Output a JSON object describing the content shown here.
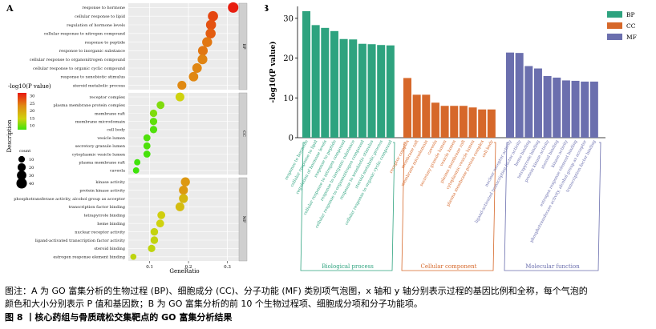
{
  "panel_a": {
    "label": "A",
    "xlabel": "GeneRatio",
    "xticks": [
      0.1,
      0.2,
      0.3
    ],
    "legend_color_title": "-log10(P value)",
    "legend_color_ticks": [
      30,
      25,
      20,
      15,
      10
    ],
    "legend_color_axis_label": "Description",
    "legend_size_title": "count",
    "legend_size_values": [
      10,
      20,
      30,
      40
    ],
    "facets": [
      {
        "strip": "BP",
        "terms": [
          {
            "label": "response to hormone",
            "ratio": 0.315,
            "logp": 31.5,
            "count": 40
          },
          {
            "label": "cellular response to lipid",
            "ratio": 0.263,
            "logp": 28.3,
            "count": 37
          },
          {
            "label": "regulation of hormone levels",
            "ratio": 0.258,
            "logp": 27.4,
            "count": 36
          },
          {
            "label": "cellular response to nitrogen compound",
            "ratio": 0.257,
            "logp": 26.5,
            "count": 36
          },
          {
            "label": "response to peptide",
            "ratio": 0.248,
            "logp": 24.5,
            "count": 35
          },
          {
            "label": "response to inorganic substance",
            "ratio": 0.237,
            "logp": 24.5,
            "count": 33
          },
          {
            "label": "cellular response to organonitrogen compound",
            "ratio": 0.236,
            "logp": 23.5,
            "count": 33
          },
          {
            "label": "cellular response to organic cyclic compound",
            "ratio": 0.222,
            "logp": 23.3,
            "count": 31
          },
          {
            "label": "response to xenobiotic stimulus",
            "ratio": 0.213,
            "logp": 23.2,
            "count": 30
          },
          {
            "label": "steroid metabolic process",
            "ratio": 0.183,
            "logp": 23.1,
            "count": 26
          }
        ]
      },
      {
        "strip": "CC",
        "terms": [
          {
            "label": "receptor complex",
            "ratio": 0.178,
            "logp": 15.0,
            "count": 25
          },
          {
            "label": "plasma membrane protein complex",
            "ratio": 0.128,
            "logp": 10.6,
            "count": 18
          },
          {
            "label": "membrane raft",
            "ratio": 0.11,
            "logp": 10.6,
            "count": 15
          },
          {
            "label": "membrane microdomain",
            "ratio": 0.11,
            "logp": 8.8,
            "count": 15
          },
          {
            "label": "cell body",
            "ratio": 0.11,
            "logp": 8.0,
            "count": 15
          },
          {
            "label": "vesicle lumen",
            "ratio": 0.093,
            "logp": 8.0,
            "count": 13
          },
          {
            "label": "secretory granule lumen",
            "ratio": 0.093,
            "logp": 7.9,
            "count": 13
          },
          {
            "label": "cytoplasmic vesicle lumen",
            "ratio": 0.093,
            "logp": 7.5,
            "count": 13
          },
          {
            "label": "plasma membrane raft",
            "ratio": 0.068,
            "logp": 7.1,
            "count": 9
          },
          {
            "label": "caveola",
            "ratio": 0.065,
            "logp": 7.0,
            "count": 9
          }
        ]
      },
      {
        "strip": "MF",
        "terms": [
          {
            "label": "kinase activity",
            "ratio": 0.192,
            "logp": 21.4,
            "count": 27
          },
          {
            "label": "protein kinase activity",
            "ratio": 0.187,
            "logp": 21.3,
            "count": 26
          },
          {
            "label": "phosphotransferase activity, alcohol group as acceptor",
            "ratio": 0.187,
            "logp": 18.0,
            "count": 26
          },
          {
            "label": "transcription factor binding",
            "ratio": 0.178,
            "logp": 17.4,
            "count": 25
          },
          {
            "label": "tetrapyrrole binding",
            "ratio": 0.13,
            "logp": 15.5,
            "count": 18
          },
          {
            "label": "heme binding",
            "ratio": 0.127,
            "logp": 15.0,
            "count": 18
          },
          {
            "label": "nuclear receptor activity",
            "ratio": 0.112,
            "logp": 14.4,
            "count": 16
          },
          {
            "label": "ligand-activated transcription factor activity",
            "ratio": 0.112,
            "logp": 14.3,
            "count": 16
          },
          {
            "label": "steroid binding",
            "ratio": 0.105,
            "logp": 14.1,
            "count": 15
          },
          {
            "label": "estrogen response element binding",
            "ratio": 0.058,
            "logp": 14.0,
            "count": 8
          }
        ]
      }
    ]
  },
  "chart_data": {
    "type": "bar",
    "label": "B",
    "ylabel": "-log10(P value)",
    "ylim": [
      0,
      33
    ],
    "yticks": [
      0,
      10,
      20,
      30
    ],
    "legend": [
      {
        "name": "BP",
        "color": "#2ea37f"
      },
      {
        "name": "CC",
        "color": "#d6682a"
      },
      {
        "name": "MF",
        "color": "#6b6fae"
      }
    ],
    "groups": [
      {
        "name": "BP",
        "bracket_label": "Biological process",
        "color": "#2ea37f",
        "categories": [
          "response to hormone",
          "cellular response to lipid",
          "regulation of hormone levels",
          "response to peptide",
          "cellular response to nitrogen compound",
          "response to inorganic substance",
          "cellular response to organonitrogen compound",
          "response to xenobiotic stimulus",
          "steroid metabolic process",
          "cellular response to organic cyclic compound"
        ],
        "values": [
          31.8,
          28.3,
          27.6,
          26.8,
          24.8,
          24.7,
          23.6,
          23.5,
          23.3,
          23.2
        ]
      },
      {
        "name": "CC",
        "bracket_label": "Cellular component",
        "color": "#d6682a",
        "categories": [
          "receptor complex",
          "membrane raft",
          "membrane microdomain",
          "caveola",
          "secretory granule lumen",
          "vesicle lumen",
          "plasma membrane raft",
          "cytoplasmic vesicle lumen",
          "plasma membrane protein complex",
          "cell body"
        ],
        "values": [
          15.0,
          10.8,
          10.8,
          8.8,
          8.0,
          8.0,
          8.0,
          7.6,
          7.1,
          7.1
        ]
      },
      {
        "name": "MF",
        "bracket_label": "Molecular function",
        "color": "#6b6fae",
        "categories": [
          "nuclear receptor activity",
          "ligand-activated transcription factor activity",
          "heme binding",
          "tetrapyrrole binding",
          "protein kinase activity",
          "steroid binding",
          "kinase activity",
          "estrogen response element binding",
          "phosphotransferase activity, alcohol group as acceptor",
          "transcription factor binding"
        ],
        "values": [
          21.4,
          21.3,
          18.0,
          17.4,
          15.5,
          15.1,
          14.4,
          14.3,
          14.1,
          14.1
        ]
      }
    ]
  },
  "caption": {
    "line1": "图注：A 为 GO 富集分析的生物过程 (BP)、细胞成分 (CC)、分子功能 (MF) 类别项气泡图，x 轴和 y 轴分别表示过程的基因比例和全称，每个气泡的",
    "line2": "颜色和大小分别表示 P 值和基因数；B 为 GO 富集分析的前 10 个生物过程项、细胞成分项和分子功能项。",
    "line3": "图 8 丨核心药组与骨质疏松交集靶点的 GO 富集分析结果"
  }
}
